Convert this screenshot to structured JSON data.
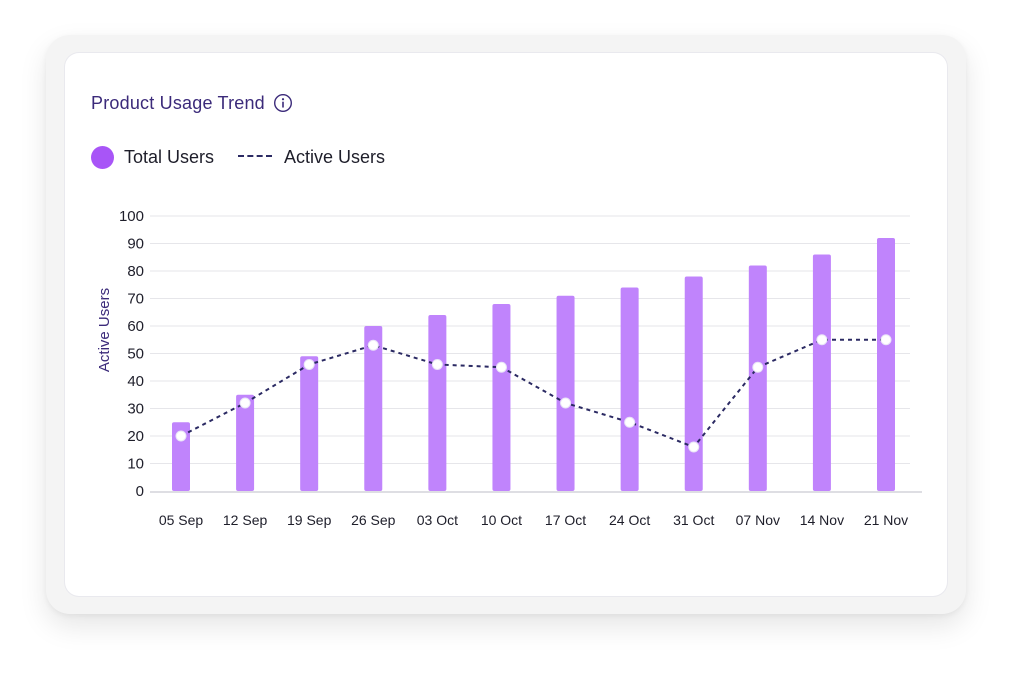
{
  "card": {
    "title": "Product Usage Trend",
    "info_icon": "info-circle-icon"
  },
  "legend": [
    {
      "label": "Total Users",
      "marker": "circle",
      "color": "#a855f7"
    },
    {
      "label": "Active Users",
      "marker": "dashed-line",
      "color": "#2b2a63"
    }
  ],
  "chart_data": {
    "type": "bar",
    "categories": [
      "05 Sep",
      "12 Sep",
      "19 Sep",
      "26 Sep",
      "03 Oct",
      "10 Oct",
      "17 Oct",
      "24 Oct",
      "31 Oct",
      "07 Nov",
      "14 Nov",
      "21 Nov"
    ],
    "series": [
      {
        "name": "Total Users",
        "type": "bar",
        "color": "#c084fc",
        "values": [
          25,
          35,
          49,
          60,
          64,
          68,
          71,
          74,
          78,
          82,
          86,
          92
        ]
      },
      {
        "name": "Active Users",
        "type": "line",
        "style": "dashed",
        "marker": "circle",
        "color": "#2b2a63",
        "values": [
          20,
          32,
          46,
          53,
          46,
          45,
          32,
          25,
          16,
          45,
          55,
          55
        ]
      }
    ],
    "xlabel": "",
    "ylabel": "Active Users",
    "ylim": [
      0,
      100
    ],
    "yticks": [
      0,
      10,
      20,
      30,
      40,
      50,
      60,
      70,
      80,
      90,
      100
    ],
    "grid": true,
    "legend_position": "top-left"
  }
}
